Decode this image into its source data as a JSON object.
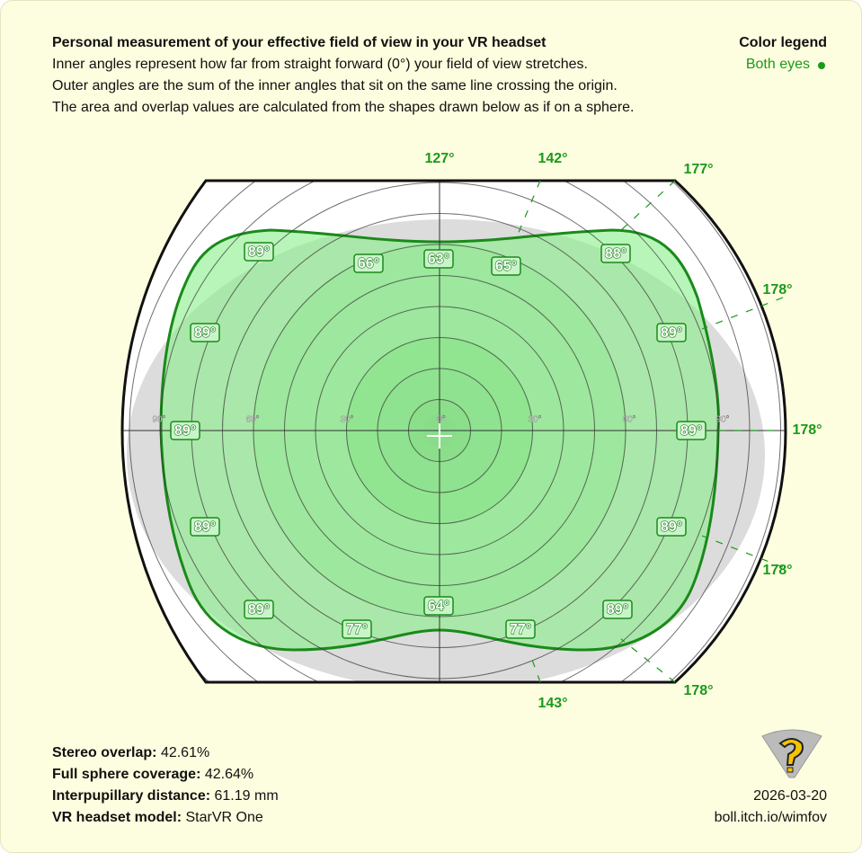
{
  "header": {
    "title": "Personal measurement of your effective field of view in your VR headset",
    "lines": [
      "Inner angles represent how far from straight forward (0°) your field of view stretches.",
      "Outer angles are the sum of the inner angles that sit on the same line crossing the origin.",
      "The area and overlap values are calculated from the shapes drawn below as if on a sphere."
    ]
  },
  "legend": {
    "title": "Color legend",
    "entry": "Both eyes"
  },
  "diagram": {
    "ring_labels": [
      "0°",
      "30°",
      "30°",
      "60°",
      "60°",
      "90°",
      "90°"
    ],
    "inner_angles": [
      "89°",
      "66°",
      "63°",
      "65°",
      "88°",
      "89°",
      "89°",
      "89°",
      "89°",
      "89°",
      "89°",
      "89°",
      "77°",
      "64°",
      "77°",
      "89°"
    ],
    "outer_angles": [
      "127°",
      "142°",
      "177°",
      "178°",
      "178°",
      "178°",
      "178°",
      "143°"
    ]
  },
  "stats": [
    {
      "label": "Stereo overlap:",
      "value": "42.61%"
    },
    {
      "label": "Full sphere coverage:",
      "value": "42.64%"
    },
    {
      "label": "Interpupillary distance:",
      "value": "61.19 mm"
    },
    {
      "label": "VR headset model:",
      "value": "StarVR One"
    }
  ],
  "footer": {
    "date": "2026-03-20",
    "url": "boll.itch.io/wimfov"
  }
}
